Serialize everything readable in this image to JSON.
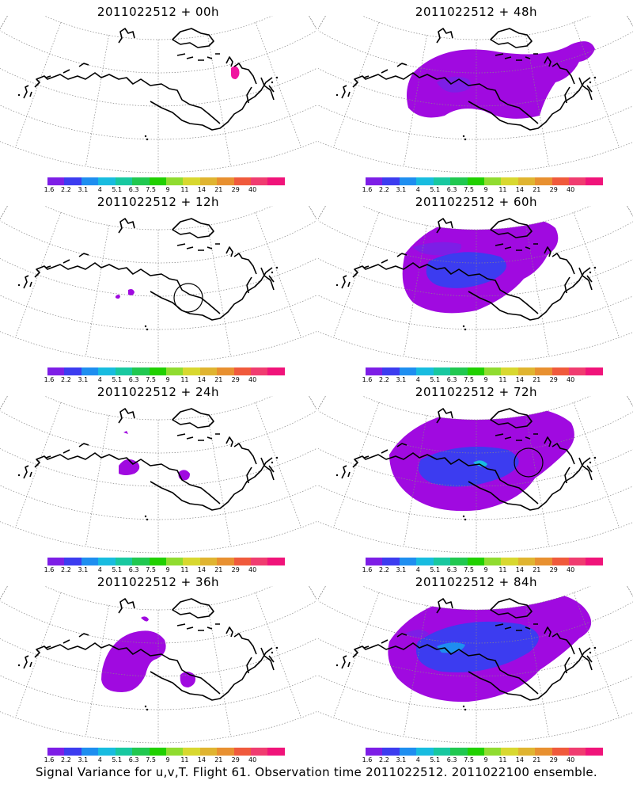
{
  "panels": [
    {
      "title": "2011022512 + 00h",
      "forecast_hour": 0
    },
    {
      "title": "2011022512 + 48h",
      "forecast_hour": 48
    },
    {
      "title": "2011022512 + 12h",
      "forecast_hour": 12
    },
    {
      "title": "2011022512 + 60h",
      "forecast_hour": 60
    },
    {
      "title": "2011022512 + 24h",
      "forecast_hour": 24
    },
    {
      "title": "2011022512 + 72h",
      "forecast_hour": 72
    },
    {
      "title": "2011022512 + 36h",
      "forecast_hour": 36
    },
    {
      "title": "2011022512 + 84h",
      "forecast_hour": 84
    }
  ],
  "colorbar": {
    "tick_labels": [
      "1.6",
      "2.2",
      "3.1",
      "4",
      "5.1",
      "6.3",
      "7.5",
      "9",
      "11",
      "14",
      "21",
      "29",
      "40"
    ],
    "colors": [
      "#a00ae0",
      "#7d1ee6",
      "#3c3cf0",
      "#1e8ef0",
      "#18bce0",
      "#18c8a0",
      "#20c850",
      "#20d000",
      "#90dc30",
      "#d8d830",
      "#e0b430",
      "#e89030",
      "#f05a3c",
      "#f03c70",
      "#f0147a"
    ]
  },
  "footer": "Signal Variance for u,v,T. Flight 61. Observation time 2011022512. 2011022100 ensemble."
}
